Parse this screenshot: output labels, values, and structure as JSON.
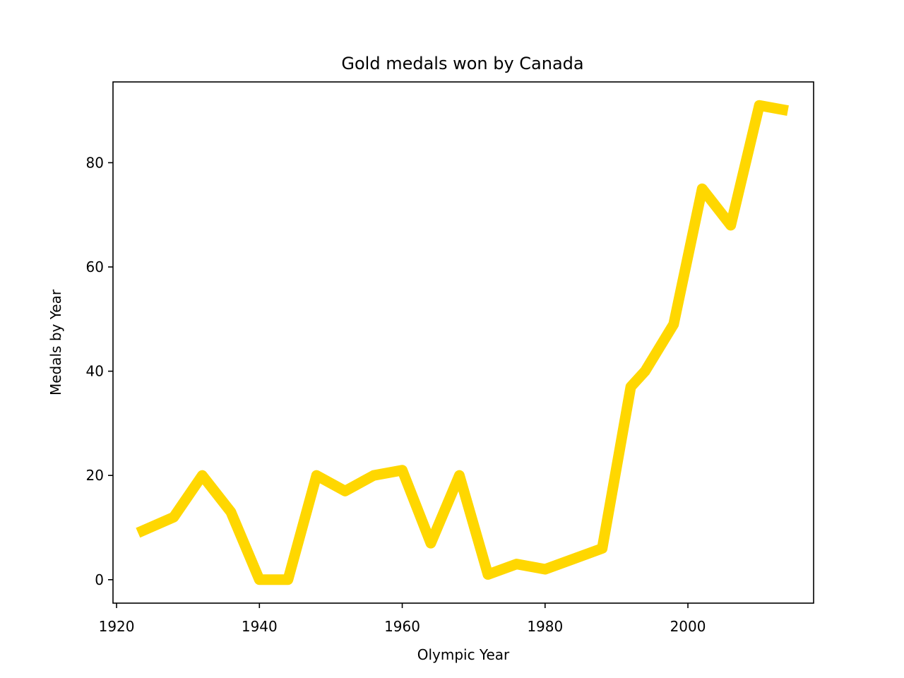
{
  "chart_data": {
    "type": "line",
    "title": "Gold medals won by Canada",
    "xlabel": "Olympic Year",
    "ylabel": "Medals by Year",
    "x": [
      1923,
      1928,
      1932,
      1936,
      1940,
      1944,
      1948,
      1952,
      1956,
      1960,
      1964,
      1968,
      1972,
      1976,
      1980,
      1984,
      1988,
      1992,
      1994,
      1998,
      2002,
      2006,
      2010,
      2014
    ],
    "series": [
      {
        "values": [
          9,
          12,
          20,
          13,
          0,
          0,
          20,
          17,
          20,
          21,
          7,
          20,
          1,
          3,
          2,
          4,
          6,
          37,
          40,
          49,
          75,
          68,
          91,
          90
        ]
      }
    ],
    "xlim": [
      1919.5,
      2017.6
    ],
    "ylim": [
      -4.5,
      95.5
    ],
    "xticks": [
      1920,
      1940,
      1960,
      1980,
      2000
    ],
    "yticks": [
      0,
      20,
      40,
      60,
      80
    ],
    "line_color": "#ffd700",
    "grid": false,
    "legend": false
  }
}
